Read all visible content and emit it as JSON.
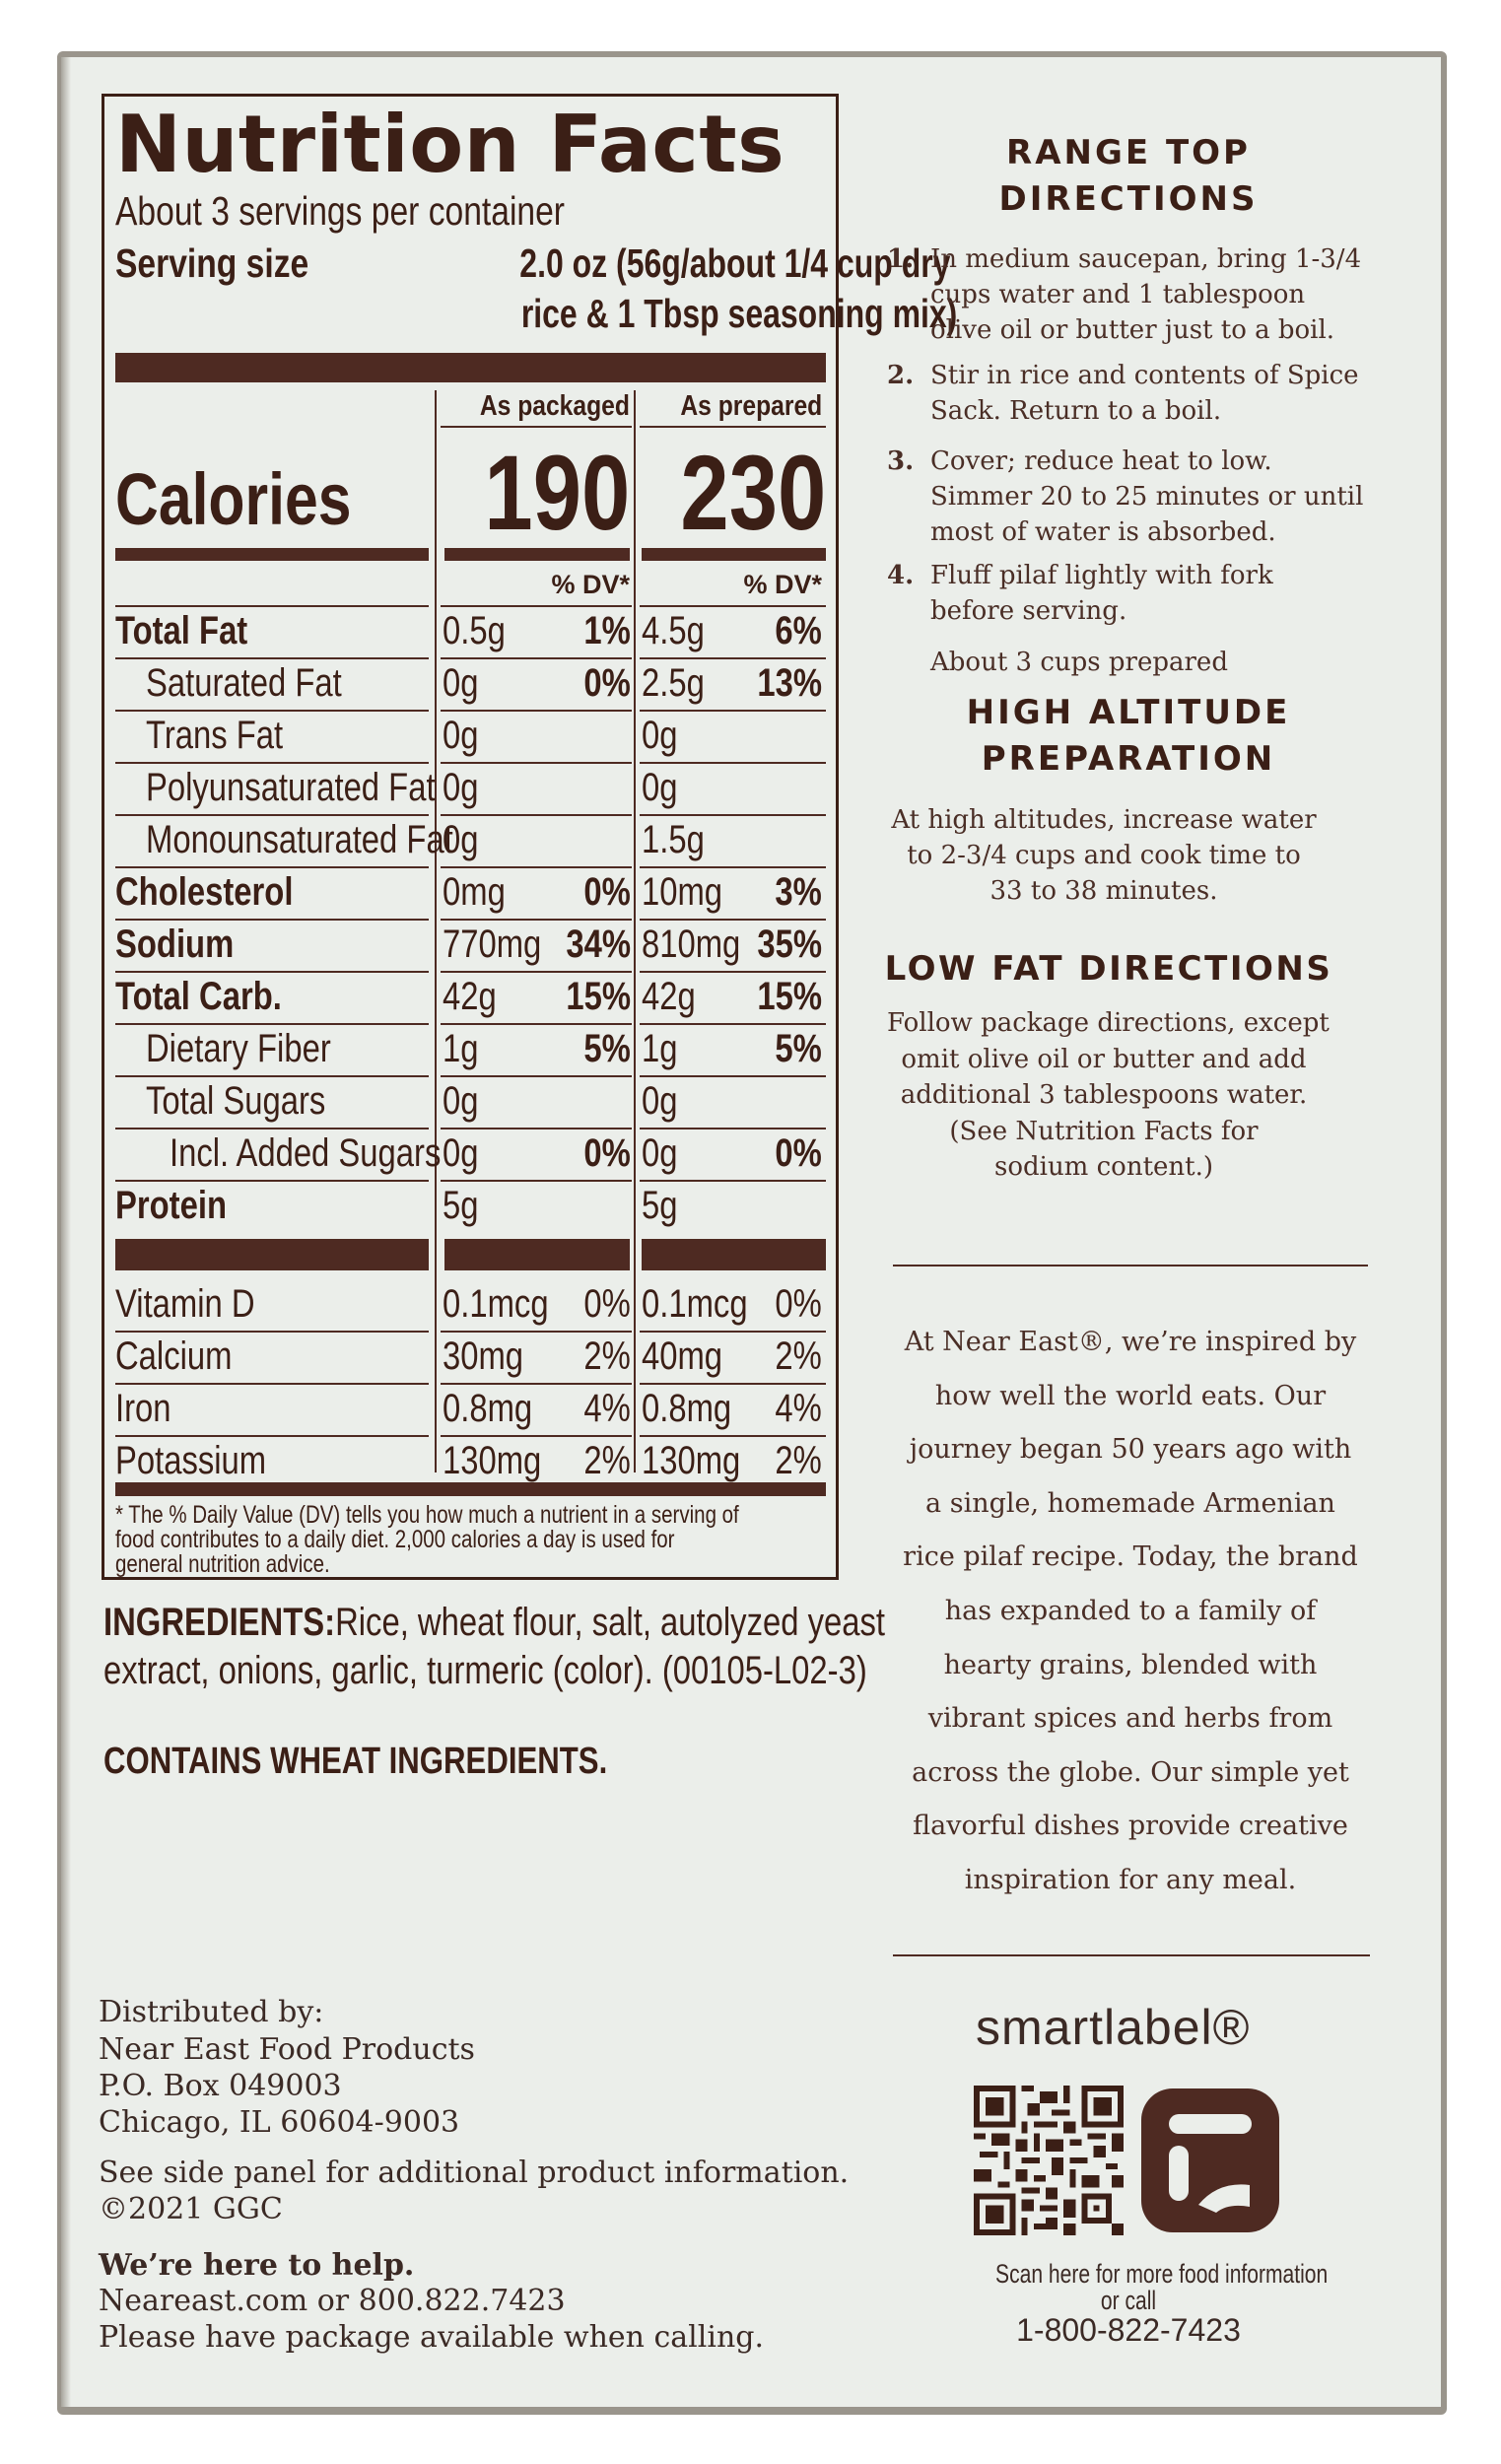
{
  "nutrition": {
    "title": "Nutrition Facts",
    "servings": "About 3 servings per container",
    "serving_size_label": "Serving size",
    "serving_size_line1": "2.0 oz (56g/about 1/4 cup dry",
    "serving_size_line2": "rice & 1 Tbsp seasoning mix)",
    "col_packaged": "As packaged",
    "col_prepared": "As prepared",
    "calories_label": "Calories",
    "calories_packaged": "190",
    "calories_prepared": "230",
    "dv_header": "% DV*",
    "nutrients": [
      {
        "name": "Total Fat",
        "bold": true,
        "indent": 0,
        "pkg": "0.5g",
        "pkg_dv": "1%",
        "prep": "4.5g",
        "prep_dv": "6%"
      },
      {
        "name": "Saturated Fat",
        "bold": false,
        "indent": 1,
        "pkg": "0g",
        "pkg_dv": "0%",
        "prep": "2.5g",
        "prep_dv": "13%"
      },
      {
        "name": "Trans Fat",
        "bold": false,
        "indent": 1,
        "pkg": "0g",
        "pkg_dv": "",
        "prep": "0g",
        "prep_dv": ""
      },
      {
        "name": "Polyunsaturated Fat",
        "bold": false,
        "indent": 1,
        "pkg": "0g",
        "pkg_dv": "",
        "prep": "0g",
        "prep_dv": ""
      },
      {
        "name": "Monounsaturated Fat",
        "bold": false,
        "indent": 1,
        "pkg": "0g",
        "pkg_dv": "",
        "prep": "1.5g",
        "prep_dv": ""
      },
      {
        "name": "Cholesterol",
        "bold": true,
        "indent": 0,
        "pkg": "0mg",
        "pkg_dv": "0%",
        "prep": "10mg",
        "prep_dv": "3%"
      },
      {
        "name": "Sodium",
        "bold": true,
        "indent": 0,
        "pkg": "770mg",
        "pkg_dv": "34%",
        "prep": "810mg",
        "prep_dv": "35%"
      },
      {
        "name": "Total Carb.",
        "bold": true,
        "indent": 0,
        "pkg": "42g",
        "pkg_dv": "15%",
        "prep": "42g",
        "prep_dv": "15%"
      },
      {
        "name": "Dietary Fiber",
        "bold": false,
        "indent": 1,
        "pkg": "1g",
        "pkg_dv": "5%",
        "prep": "1g",
        "prep_dv": "5%"
      },
      {
        "name": "Total Sugars",
        "bold": false,
        "indent": 1,
        "pkg": "0g",
        "pkg_dv": "",
        "prep": "0g",
        "prep_dv": ""
      },
      {
        "name": "Incl. Added Sugars",
        "bold": false,
        "indent": 2,
        "pkg": "0g",
        "pkg_dv": "0%",
        "prep": "0g",
        "prep_dv": "0%"
      },
      {
        "name": "Protein",
        "bold": true,
        "indent": 0,
        "pkg": "5g",
        "pkg_dv": "",
        "prep": "5g",
        "prep_dv": ""
      }
    ],
    "vitamins": [
      {
        "name": "Vitamin D",
        "pkg": "0.1mcg",
        "pkg_dv": "0%",
        "prep": "0.1mcg",
        "prep_dv": "0%"
      },
      {
        "name": "Calcium",
        "pkg": "30mg",
        "pkg_dv": "2%",
        "prep": "40mg",
        "prep_dv": "2%"
      },
      {
        "name": "Iron",
        "pkg": "0.8mg",
        "pkg_dv": "4%",
        "prep": "0.8mg",
        "prep_dv": "4%"
      },
      {
        "name": "Potassium",
        "pkg": "130mg",
        "pkg_dv": "2%",
        "prep": "130mg",
        "prep_dv": "2%"
      }
    ],
    "footnote_line1": "* The % Daily Value (DV) tells you how much a nutrient in a serving of",
    "footnote_line2": "food contributes to a daily diet. 2,000 calories a day is used for",
    "footnote_line3": "general nutrition advice."
  },
  "ingredients": {
    "label": "INGREDIENTS:",
    "line1": "Rice, wheat flour, salt, autolyzed yeast",
    "line2": "extract, onions, garlic, turmeric (color). (00105-L02-3)",
    "allergen": "CONTAINS WHEAT INGREDIENTS."
  },
  "distributor": {
    "line1": "Distributed by:",
    "line2": "Near East Food Products",
    "line3": "P.O. Box 049003",
    "line4": "Chicago, IL 60604-9003",
    "line5": "See side panel for additional product information.",
    "line6": "©2021 GGC",
    "help_heading": "We’re here to help.",
    "help_line1": "Neareast.com or 800.822.7423",
    "help_line2": "Please have package available when calling."
  },
  "range_top": {
    "heading1": "RANGE TOP",
    "heading2": "DIRECTIONS",
    "steps": [
      {
        "num": "1.",
        "lines": [
          "In medium saucepan, bring 1-3/4",
          "cups water and 1 tablespoon",
          "olive oil or butter just to a boil."
        ]
      },
      {
        "num": "2.",
        "lines": [
          "Stir in rice and contents of Spice",
          "Sack. Return to a boil."
        ]
      },
      {
        "num": "3.",
        "lines": [
          "Cover; reduce heat to low.",
          "Simmer 20 to 25 minutes or until",
          "most of water is absorbed."
        ]
      },
      {
        "num": "4.",
        "lines": [
          "Fluff pilaf lightly with fork",
          "before serving."
        ]
      }
    ],
    "yield": "About 3 cups prepared"
  },
  "high_altitude": {
    "heading1": "HIGH ALTITUDE",
    "heading2": "PREPARATION",
    "lines": [
      "At high altitudes, increase water",
      "to 2-3/4 cups and cook time to",
      "33 to 38 minutes."
    ]
  },
  "low_fat": {
    "heading": "LOW FAT DIRECTIONS",
    "lines": [
      "Follow package directions, except",
      "omit olive oil or butter and add",
      "additional 3 tablespoons water.",
      "(See Nutrition Facts for",
      "sodium content.)"
    ]
  },
  "story": {
    "lines": [
      "At Near East®, we’re inspired by",
      "how well the world eats. Our",
      "journey began 50 years ago with",
      "a single, homemade Armenian",
      "rice pilaf recipe. Today, the brand",
      "has expanded to a family of",
      "hearty grains, blended with",
      "vibrant spices and herbs from",
      "across the globe. Our simple yet",
      "flavorful dishes provide creative",
      "inspiration for any meal."
    ]
  },
  "smartlabel": {
    "logo_text": "smartlabel®",
    "scan_line1": "Scan here for more food information",
    "scan_line2": "or call",
    "phone": "1-800-822-7423"
  },
  "colors": {
    "ink": "#3b1f16",
    "bar": "#4e2a22",
    "panel": "#ebeeea",
    "box_edge": "#9a958c"
  }
}
